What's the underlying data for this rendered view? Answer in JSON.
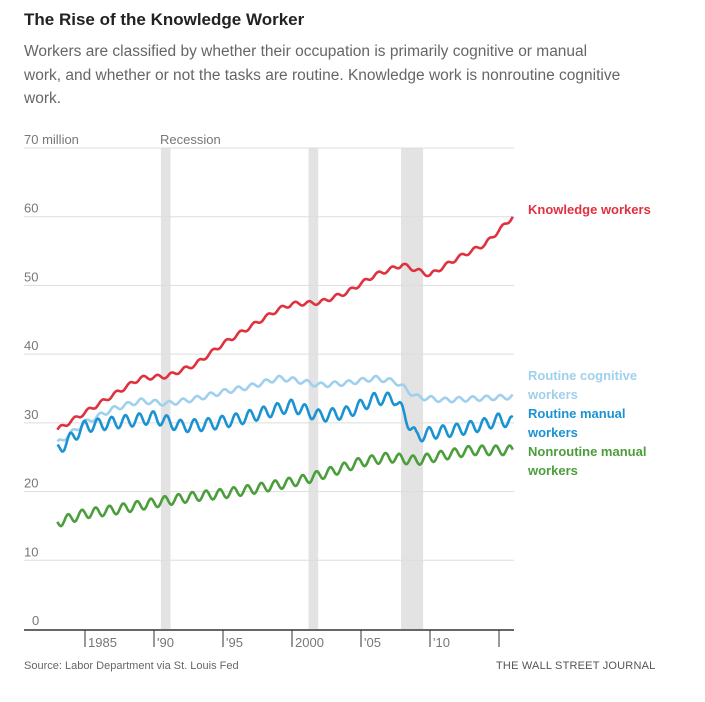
{
  "title": "The Rise of the Knowledge Worker",
  "subtitle": "Workers are classified by whether their occupation is primarily cognitive or manual work, and whether or not the tasks are routine. Knowledge work is nonroutine cognitive work.",
  "footer": {
    "source": "Source: Labor Department via St. Louis Fed",
    "brand": "THE WALL STREET JOURNAL"
  },
  "chart_data": {
    "type": "line",
    "title": "The Rise of the Knowledge Worker",
    "ylabel": "70 million",
    "ylim": [
      0,
      70
    ],
    "xlim": [
      1983,
      2016
    ],
    "grid": true,
    "yticks": [
      {
        "v": 70,
        "label": "70 million"
      },
      {
        "v": 60,
        "label": "60"
      },
      {
        "v": 50,
        "label": "50"
      },
      {
        "v": 40,
        "label": "40"
      },
      {
        "v": 30,
        "label": "30"
      },
      {
        "v": 20,
        "label": "20"
      },
      {
        "v": 10,
        "label": "10"
      },
      {
        "v": 0,
        "label": "0"
      }
    ],
    "xticks": [
      {
        "v": 1985,
        "label": "1985"
      },
      {
        "v": 1990,
        "label": "'90"
      },
      {
        "v": 1995,
        "label": "'95"
      },
      {
        "v": 2000,
        "label": "2000"
      },
      {
        "v": 2005,
        "label": "'05"
      },
      {
        "v": 2010,
        "label": "'10"
      },
      {
        "v": 2015,
        "label": ""
      }
    ],
    "recession_label": "Recession",
    "recessions": [
      [
        1990.5,
        1991.2
      ],
      [
        2001.2,
        2001.9
      ],
      [
        2007.9,
        2009.5
      ]
    ],
    "series": [
      {
        "name": "Knowledge workers",
        "label_lines": [
          "Knowledge workers"
        ],
        "color": "#e0313f",
        "seasonal_amp": 0.3,
        "x": [
          1983,
          1985,
          1987,
          1989,
          1991,
          1993,
          1995,
          1997,
          1999,
          2000,
          2002,
          2004,
          2006,
          2008,
          2010,
          2012,
          2014,
          2015,
          2016
        ],
        "y": [
          29,
          31.5,
          34,
          36.5,
          36.8,
          38.5,
          41.5,
          44,
          46.5,
          47.3,
          47.5,
          49,
          51.5,
          53,
          51.5,
          54,
          56,
          58,
          60
        ]
      },
      {
        "name": "Routine cognitive workers",
        "label_lines": [
          "Routine cognitive",
          "workers"
        ],
        "color": "#9fd0ee",
        "seasonal_amp": 0.35,
        "x": [
          1983,
          1985,
          1987,
          1989,
          1991,
          1993,
          1995,
          1997,
          1999,
          2000,
          2002,
          2004,
          2006,
          2007.5,
          2009,
          2011,
          2013,
          2016
        ],
        "y": [
          27,
          30,
          32,
          33.2,
          32.8,
          33.5,
          34.5,
          35.3,
          36.5,
          36.3,
          35.5,
          35.8,
          36.5,
          36,
          33.8,
          33.3,
          33.5,
          33.8
        ]
      },
      {
        "name": "Routine manual workers",
        "label_lines": [
          "Routine manual",
          "workers"
        ],
        "color": "#1b93d2",
        "seasonal_amp": 0.9,
        "x": [
          1983,
          1985,
          1987,
          1989,
          1990,
          1992,
          1994,
          1996,
          1998,
          2000,
          2002,
          2004,
          2006,
          2007.5,
          2009,
          2010,
          2012,
          2014,
          2015,
          2016
        ],
        "y": [
          26,
          29.5,
          30,
          30.5,
          30.8,
          29.5,
          29.8,
          30.5,
          31.5,
          32.5,
          31,
          31.5,
          33.5,
          33.5,
          28,
          28.5,
          29,
          29.8,
          30.5,
          30
        ]
      },
      {
        "name": "Nonroutine manual workers",
        "label_lines": [
          "Nonroutine manual",
          "workers"
        ],
        "color": "#4b9e3b",
        "seasonal_amp": 0.7,
        "x": [
          1983,
          1985,
          1987,
          1989,
          1991,
          1993,
          1995,
          1997,
          1999,
          2001,
          2003,
          2005,
          2007,
          2009,
          2011,
          2013,
          2016
        ],
        "y": [
          15.5,
          16.8,
          17.3,
          18,
          18.7,
          19.3,
          19.7,
          20.3,
          21,
          21.8,
          23,
          24.3,
          25,
          24.5,
          25.3,
          26,
          26
        ]
      }
    ]
  }
}
